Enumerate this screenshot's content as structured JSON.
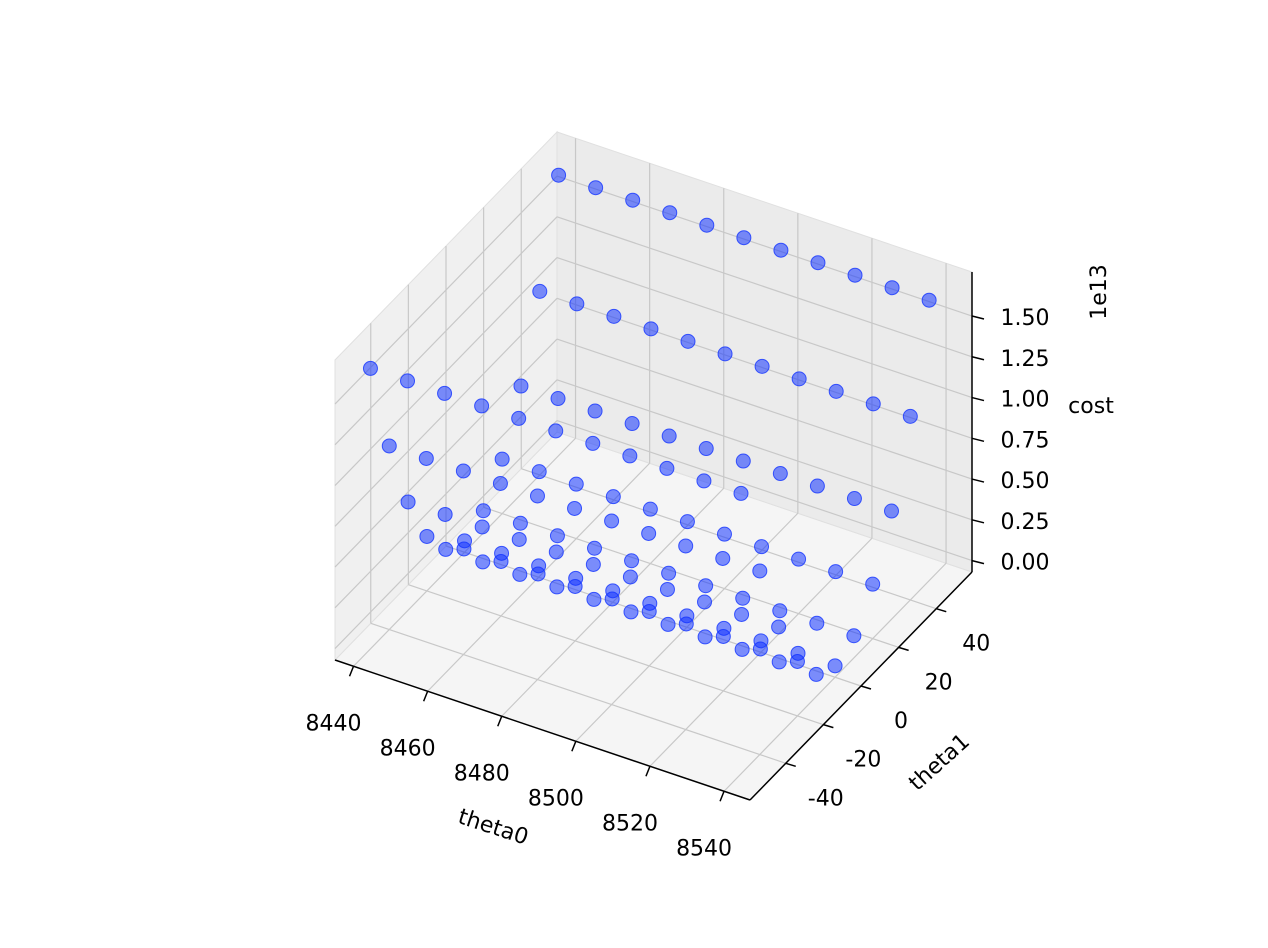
{
  "chart_data": {
    "type": "scatter3d",
    "xlabel": "theta0",
    "ylabel": "theta1",
    "zlabel": "cost",
    "zoffset": "1e13",
    "color": "#1435ff",
    "xlim": [
      8435,
      8547
    ],
    "ylim": [
      -59,
      59
    ],
    "zlim": [
      -0.07,
      1.77
    ],
    "xticks": [
      8440,
      8460,
      8480,
      8500,
      8520,
      8540
    ],
    "yticks": [
      -40,
      -20,
      0,
      20,
      40
    ],
    "zticks": [
      {
        "value": 0,
        "label": "0.00"
      },
      {
        "value": 0.25,
        "label": "0.25"
      },
      {
        "value": 0.5,
        "label": "0.50"
      },
      {
        "value": 0.75,
        "label": "0.75"
      },
      {
        "value": 1.0,
        "label": "1.00"
      },
      {
        "value": 1.25,
        "label": "1.25"
      },
      {
        "value": 1.5,
        "label": "1.50"
      }
    ],
    "grid": true,
    "x": [
      8440,
      8440,
      8440,
      8440,
      8440,
      8440,
      8440,
      8440,
      8440,
      8440,
      8440,
      8450,
      8450,
      8450,
      8450,
      8450,
      8450,
      8450,
      8450,
      8450,
      8450,
      8450,
      8460,
      8460,
      8460,
      8460,
      8460,
      8460,
      8460,
      8460,
      8460,
      8460,
      8460,
      8470,
      8470,
      8470,
      8470,
      8470,
      8470,
      8470,
      8470,
      8470,
      8470,
      8470,
      8480,
      8480,
      8480,
      8480,
      8480,
      8480,
      8480,
      8480,
      8480,
      8480,
      8480,
      8490,
      8490,
      8490,
      8490,
      8490,
      8490,
      8490,
      8490,
      8490,
      8490,
      8490,
      8500,
      8500,
      8500,
      8500,
      8500,
      8500,
      8500,
      8500,
      8500,
      8500,
      8500,
      8510,
      8510,
      8510,
      8510,
      8510,
      8510,
      8510,
      8510,
      8510,
      8510,
      8510,
      8520,
      8520,
      8520,
      8520,
      8520,
      8520,
      8520,
      8520,
      8520,
      8520,
      8520,
      8530,
      8530,
      8530,
      8530,
      8530,
      8530,
      8530,
      8530,
      8530,
      8530,
      8530,
      8540,
      8540,
      8540,
      8540,
      8540,
      8540,
      8540,
      8540,
      8540,
      8540,
      8540
    ],
    "y": [
      -50,
      -40,
      -30,
      -20,
      -10,
      0,
      10,
      20,
      30,
      40,
      50,
      -50,
      -40,
      -30,
      -20,
      -10,
      0,
      10,
      20,
      30,
      40,
      50,
      -50,
      -40,
      -30,
      -20,
      -10,
      0,
      10,
      20,
      30,
      40,
      50,
      -50,
      -40,
      -30,
      -20,
      -10,
      0,
      10,
      20,
      30,
      40,
      50,
      -50,
      -40,
      -30,
      -20,
      -10,
      0,
      10,
      20,
      30,
      40,
      50,
      -50,
      -40,
      -30,
      -20,
      -10,
      0,
      10,
      20,
      30,
      40,
      50,
      -50,
      -40,
      -30,
      -20,
      -10,
      0,
      10,
      20,
      30,
      40,
      50,
      -50,
      -40,
      -30,
      -20,
      -10,
      0,
      10,
      20,
      30,
      40,
      50,
      -50,
      -40,
      -30,
      -20,
      -10,
      0,
      10,
      20,
      30,
      40,
      50,
      -50,
      -40,
      -30,
      -20,
      -10,
      0,
      10,
      20,
      30,
      40,
      50,
      -50,
      -40,
      -30,
      -20,
      -10,
      0,
      10,
      20,
      30,
      40,
      50
    ],
    "z": [
      1.65,
      1.056,
      0.594,
      0.264,
      0.066,
      0,
      0.066,
      0.264,
      0.594,
      1.056,
      1.65,
      1.65,
      1.056,
      0.594,
      0.264,
      0.066,
      0,
      0.066,
      0.264,
      0.594,
      1.056,
      1.65,
      1.65,
      1.056,
      0.594,
      0.264,
      0.066,
      0,
      0.066,
      0.264,
      0.594,
      1.056,
      1.65,
      1.65,
      1.056,
      0.594,
      0.264,
      0.066,
      0,
      0.066,
      0.264,
      0.594,
      1.056,
      1.65,
      1.65,
      1.056,
      0.594,
      0.264,
      0.066,
      0,
      0.066,
      0.264,
      0.594,
      1.056,
      1.65,
      1.65,
      1.056,
      0.594,
      0.264,
      0.066,
      0,
      0.066,
      0.264,
      0.594,
      1.056,
      1.65,
      1.65,
      1.056,
      0.594,
      0.264,
      0.066,
      0,
      0.066,
      0.264,
      0.594,
      1.056,
      1.65,
      1.65,
      1.056,
      0.594,
      0.264,
      0.066,
      0,
      0.066,
      0.264,
      0.594,
      1.056,
      1.65,
      1.65,
      1.056,
      0.594,
      0.264,
      0.066,
      0,
      0.066,
      0.264,
      0.594,
      1.056,
      1.65,
      1.65,
      1.056,
      0.594,
      0.264,
      0.066,
      0,
      0.066,
      0.264,
      0.594,
      1.056,
      1.65,
      1.65,
      1.056,
      0.594,
      0.264,
      0.066,
      0,
      0.066,
      0.264,
      0.594,
      1.056,
      1.65
    ]
  }
}
